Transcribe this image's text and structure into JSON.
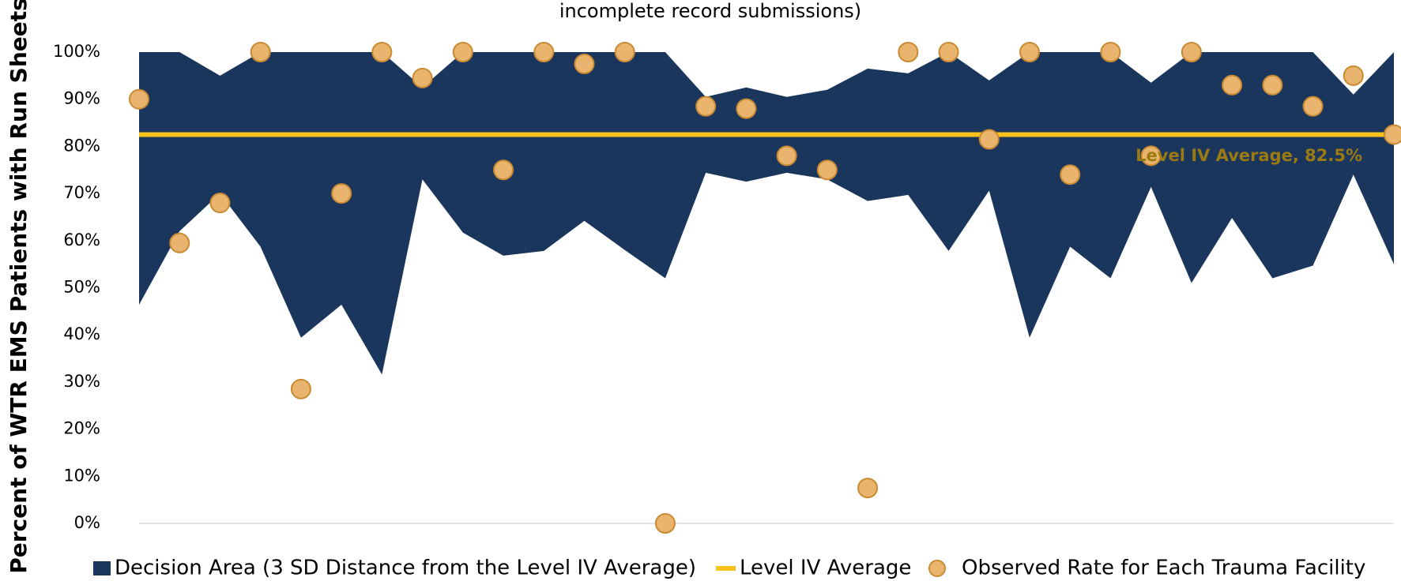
{
  "chart_data": {
    "type": "band-line-scatter",
    "title": "incomplete record submissions)",
    "y_label": "Percent of WTR EMS Patients with Run Sheets",
    "categories": [
      null,
      null,
      null,
      null,
      null,
      null,
      null,
      null,
      null,
      null,
      null,
      null,
      null,
      null,
      null,
      null,
      null,
      null,
      null,
      null,
      null,
      null,
      null,
      null,
      null,
      null,
      null,
      null,
      null,
      null,
      null,
      null
    ],
    "series": [
      {
        "name": "Decision Area (3 SD Distance from the Level IV Average)",
        "color": "#1b365d",
        "upper": [
          100,
          100,
          95,
          100,
          100,
          100,
          100,
          92.5,
          100,
          100,
          100,
          100,
          100,
          100,
          90.5,
          92.5,
          90.5,
          92,
          96.5,
          95.5,
          100,
          94,
          100,
          100,
          100,
          93.5,
          100,
          100,
          100,
          100,
          91,
          100
        ],
        "lower": [
          46.4,
          62,
          70,
          58.7,
          39.4,
          46.4,
          31.6,
          73,
          61.7,
          56.8,
          57.8,
          64.2,
          58,
          52,
          74.4,
          72.5,
          74.4,
          73,
          68.4,
          69.7,
          57.8,
          70.6,
          39.4,
          58.7,
          52,
          71.4,
          51,
          64.8,
          52,
          54.7,
          74,
          55
        ]
      },
      {
        "name": "Level IV Average",
        "color": "#f7c21b",
        "value": 82.5
      },
      {
        "name": "Observed Rate for Each Trauma Facility",
        "color": "#e9b46d",
        "edge_color": "#c98a33",
        "values": [
          90,
          59.5,
          68,
          100,
          28.5,
          70,
          100,
          94.5,
          100,
          75,
          100,
          97.5,
          100,
          0,
          88.5,
          88,
          78,
          75,
          7.5,
          100,
          100,
          81.5,
          100,
          74,
          100,
          78,
          100,
          93,
          93,
          88.5,
          95,
          82.5
        ]
      }
    ],
    "annotation": "Level IV Average, 82.5%",
    "annotation_color": "#9c7a12",
    "ylim": [
      0,
      100
    ],
    "yticks": [
      {
        "value": 0,
        "label": "0%"
      },
      {
        "value": 10,
        "label": "10%"
      },
      {
        "value": 20,
        "label": "20%"
      },
      {
        "value": 30,
        "label": "30%"
      },
      {
        "value": 40,
        "label": "40%"
      },
      {
        "value": 50,
        "label": "50%"
      },
      {
        "value": 60,
        "label": "60%"
      },
      {
        "value": 70,
        "label": "70%"
      },
      {
        "value": 80,
        "label": "80%"
      },
      {
        "value": 90,
        "label": "90%"
      },
      {
        "value": 100,
        "label": "100%"
      }
    ]
  }
}
